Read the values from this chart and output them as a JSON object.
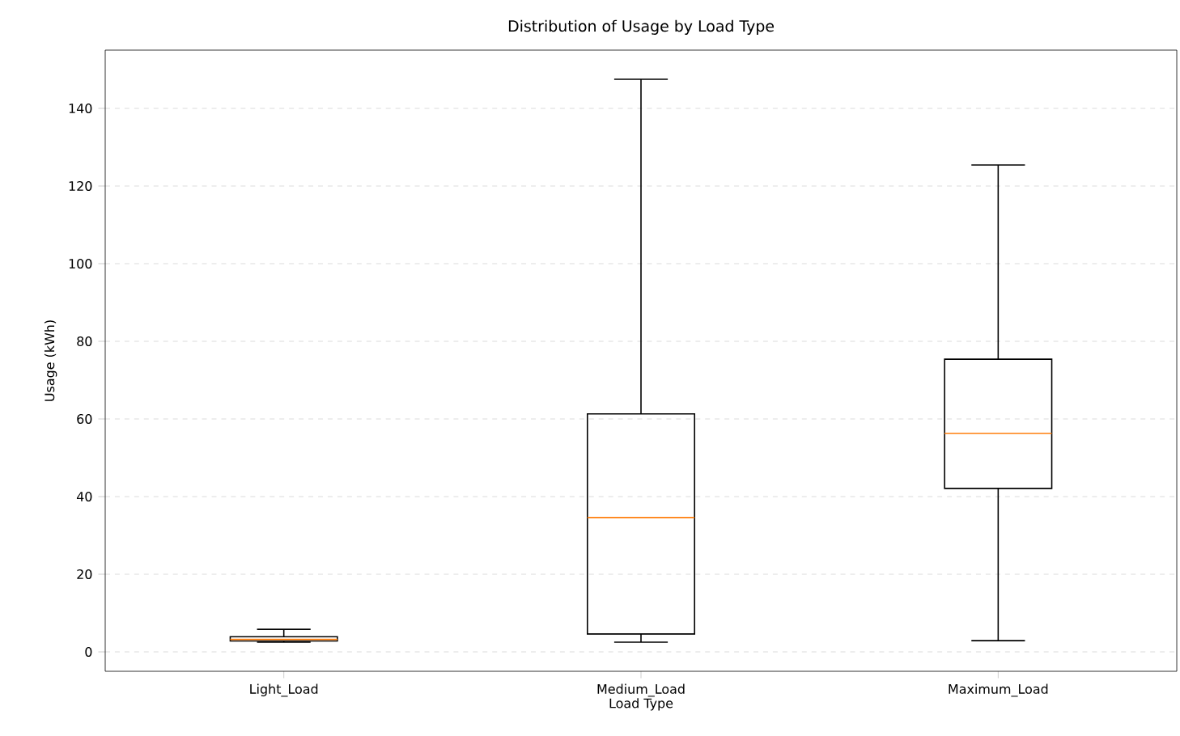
{
  "chart_data": {
    "type": "box",
    "title": "Distribution of Usage by Load Type",
    "xlabel": "Load Type",
    "ylabel": "Usage (kWh)",
    "categories": [
      "Light_Load",
      "Medium_Load",
      "Maximum_Load"
    ],
    "boxes": [
      {
        "low": 2.5,
        "q1": 2.8,
        "median": 3.2,
        "q3": 3.9,
        "high": 5.8
      },
      {
        "low": 2.5,
        "q1": 4.6,
        "median": 34.6,
        "q3": 61.3,
        "high": 147.5
      },
      {
        "low": 2.9,
        "q1": 42.1,
        "median": 56.3,
        "q3": 75.4,
        "high": 125.4
      }
    ],
    "ylim": [
      -5,
      155
    ],
    "yticks": [
      0,
      20,
      40,
      60,
      80,
      100,
      120,
      140
    ],
    "grid": "y"
  }
}
